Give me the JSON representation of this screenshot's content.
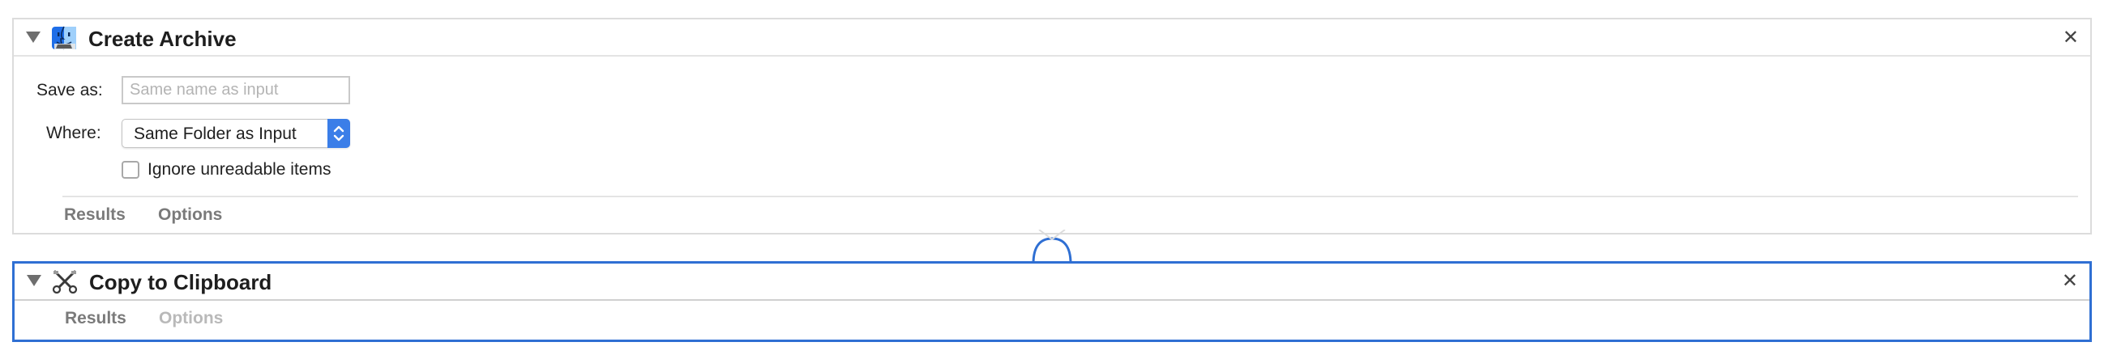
{
  "actions": [
    {
      "title": "Create Archive",
      "icon": "finder-icon",
      "fields": {
        "save_as_label": "Save as:",
        "save_as_value": "",
        "save_as_placeholder": "Same name as input",
        "where_label": "Where:",
        "where_value": "Same Folder as Input",
        "ignore_label": "Ignore unreadable items",
        "ignore_checked": false
      },
      "tabs": {
        "results": "Results",
        "options": "Options"
      },
      "close": "✕",
      "selected": false
    },
    {
      "title": "Copy to Clipboard",
      "icon": "scissors-icon",
      "tabs": {
        "results": "Results",
        "options": "Options"
      },
      "close": "✕",
      "selected": true
    }
  ],
  "colors": {
    "selection_border": "#2f6fd3",
    "stepper_blue": "#3b7ee8",
    "panel_border": "#dcdcdc"
  }
}
